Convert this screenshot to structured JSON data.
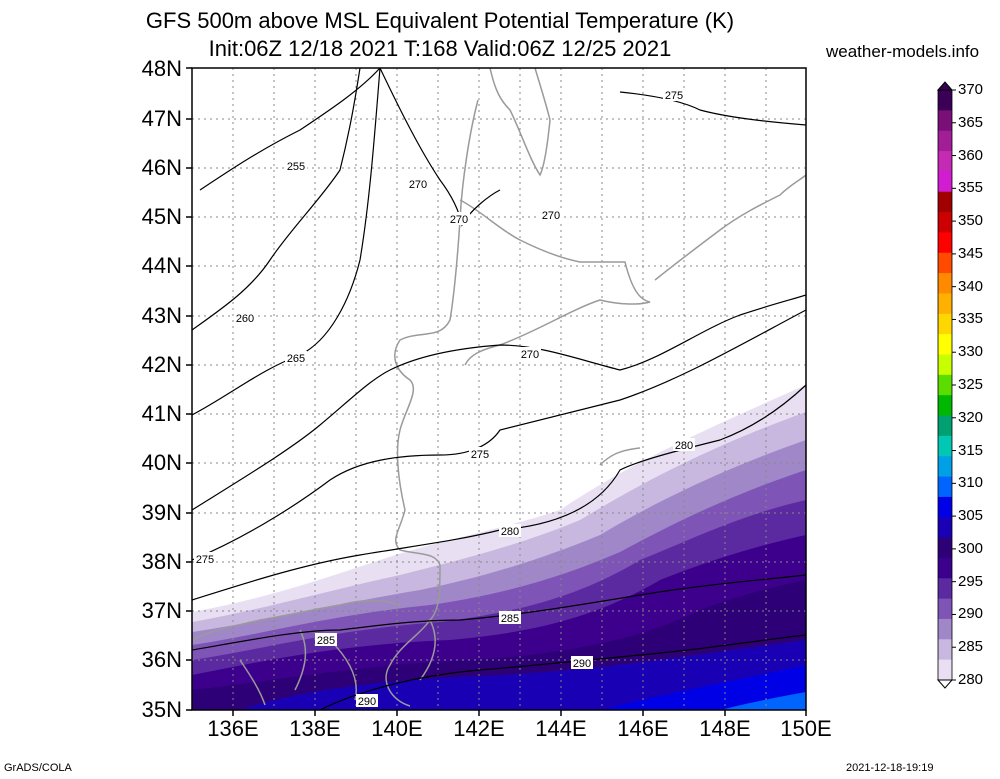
{
  "title": {
    "line1": "GFS 500m above MSL Equivalent Potential Temperature (K)",
    "line2": "Init:06Z 12/18 2021 T:168 Valid:06Z 12/25 2021",
    "site": "weather-models.info"
  },
  "axes": {
    "lat_labels": [
      "48N",
      "47N",
      "46N",
      "45N",
      "44N",
      "43N",
      "42N",
      "41N",
      "40N",
      "39N",
      "38N",
      "37N",
      "36N",
      "35N"
    ],
    "lon_labels": [
      "136E",
      "138E",
      "140E",
      "142E",
      "144E",
      "146E",
      "148E",
      "150E"
    ],
    "lat_range": [
      35,
      48
    ],
    "lon_range": [
      135,
      150
    ]
  },
  "colorbar": {
    "labels": [
      "370",
      "365",
      "360",
      "355",
      "350",
      "345",
      "340",
      "335",
      "330",
      "325",
      "320",
      "315",
      "310",
      "305",
      "300",
      "295",
      "290",
      "285",
      "280"
    ],
    "colors": [
      "#3a0058",
      "#7a0f78",
      "#a21e96",
      "#c42ab4",
      "#d11cd1",
      "#a00000",
      "#cc0000",
      "#ff0000",
      "#ff4a00",
      "#ff8a00",
      "#ffb000",
      "#ffd700",
      "#ffff00",
      "#c8ff00",
      "#5cdd00",
      "#00b800",
      "#00a070",
      "#00c8b4",
      "#00a0e6",
      "#0064ff",
      "#0000e6",
      "#1a00b4",
      "#2d0078",
      "#3d008c",
      "#5c2aa0",
      "#7e55b6",
      "#a088c8",
      "#c8b8e0",
      "#e8e0f2"
    ]
  },
  "contour_labels": [
    {
      "text": "255"
    },
    {
      "text": "260"
    },
    {
      "text": "265"
    },
    {
      "text": "270"
    },
    {
      "text": "270"
    },
    {
      "text": "270"
    },
    {
      "text": "270"
    },
    {
      "text": "275"
    },
    {
      "text": "275"
    },
    {
      "text": "275"
    },
    {
      "text": "280"
    },
    {
      "text": "280"
    },
    {
      "text": "285"
    },
    {
      "text": "285"
    },
    {
      "text": "290"
    },
    {
      "text": "290"
    }
  ],
  "footer": {
    "left": "GrADS/COLA",
    "right": "2021-12-18-19:19"
  }
}
